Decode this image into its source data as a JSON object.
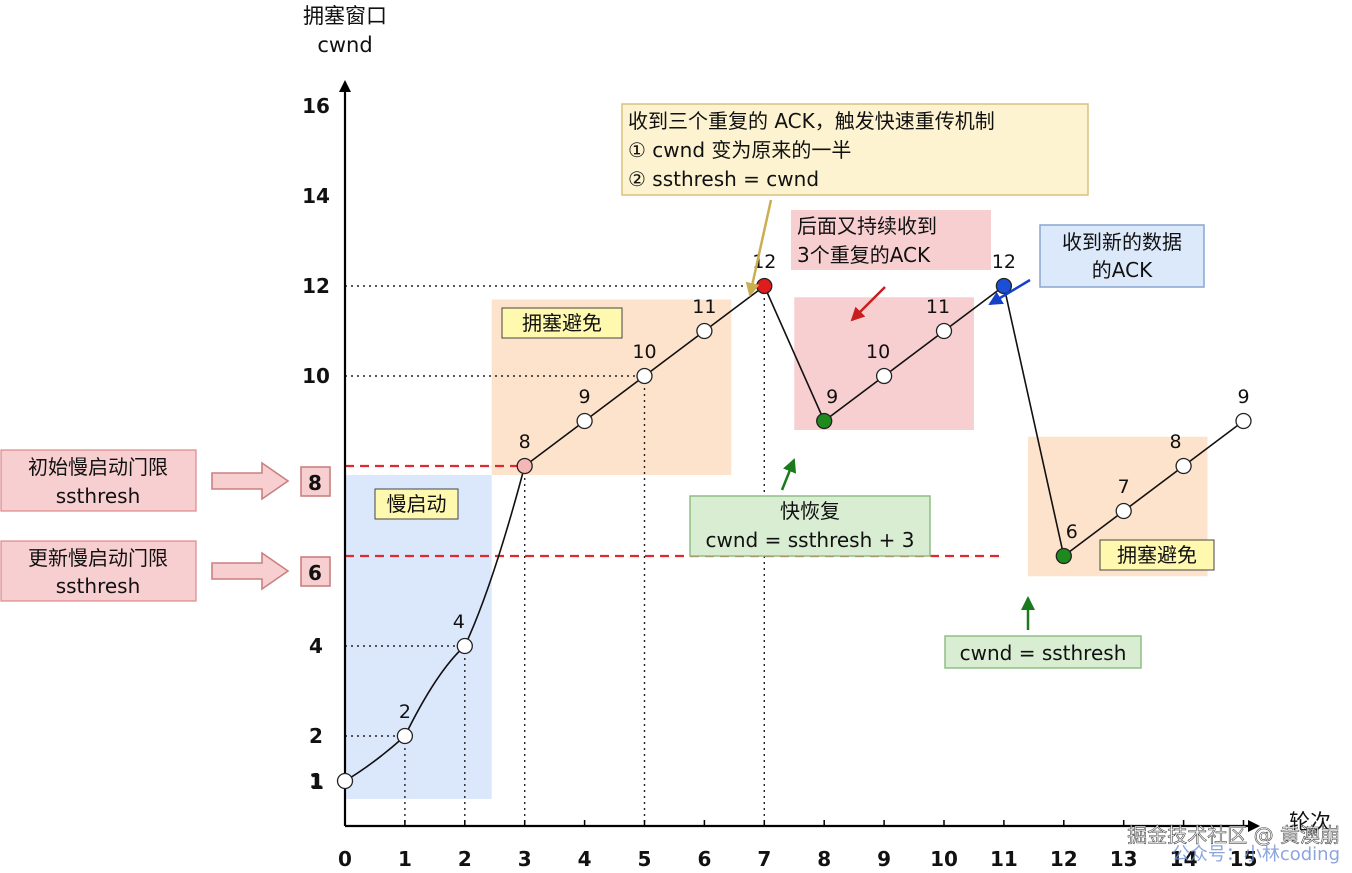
{
  "chart_data": {
    "type": "line",
    "ylabel_line1": "拥塞窗口",
    "ylabel_line2": "cwnd",
    "xlabel": "轮次",
    "x_ticks": [
      "0",
      "1",
      "2",
      "3",
      "4",
      "5",
      "6",
      "7",
      "8",
      "9",
      "10",
      "11",
      "12",
      "13",
      "14",
      "15"
    ],
    "y_ticks": [
      "1",
      "2",
      "4",
      "6",
      "8",
      "10",
      "12",
      "14",
      "16"
    ],
    "xlim": [
      0,
      15
    ],
    "ylim": [
      0,
      16
    ],
    "series": [
      {
        "points": [
          [
            0,
            1
          ],
          [
            1,
            2
          ],
          [
            2,
            4
          ],
          [
            3,
            8
          ],
          [
            4,
            9
          ],
          [
            5,
            10
          ],
          [
            6,
            11
          ],
          [
            7,
            12
          ],
          [
            8,
            9
          ],
          [
            9,
            10
          ],
          [
            10,
            11
          ],
          [
            11,
            12
          ],
          [
            12,
            6
          ],
          [
            13,
            7
          ],
          [
            14,
            8
          ],
          [
            15,
            9
          ]
        ]
      }
    ],
    "point_labels": [
      "2",
      "4",
      "8",
      "9",
      "10",
      "11",
      "12",
      "9",
      "10",
      "11",
      "12",
      "6",
      "7",
      "8",
      "9"
    ],
    "highlighted_points": [
      {
        "x": 3,
        "y": 8,
        "color": "#f4b6b6"
      },
      {
        "x": 7,
        "y": 12,
        "color": "#e01b1b"
      },
      {
        "x": 8,
        "y": 9,
        "color": "#1e8a1e"
      },
      {
        "x": 11,
        "y": 12,
        "color": "#1a4fd6"
      },
      {
        "x": 12,
        "y": 6,
        "color": "#1e8a1e"
      }
    ],
    "thresholds": [
      8,
      6
    ],
    "regions": [
      {
        "label": "慢启动",
        "color": "#dbe8fb"
      },
      {
        "label": "拥塞避免",
        "color": "#fde3cc"
      },
      {
        "label": "",
        "color": "#f8cfd1"
      },
      {
        "label": "拥塞避免",
        "color": "#fde3cc"
      }
    ],
    "annotations": {
      "fast_retransmit": [
        "收到三个重复的 ACK，触发快速重传机制",
        "① cwnd 变为原来的一半",
        "② ssthresh = cwnd"
      ],
      "repeat_dup_ack": [
        "后面又持续收到",
        "3个重复的ACK"
      ],
      "new_ack": [
        "收到新的数据",
        "的ACK"
      ],
      "fast_recovery": [
        "快恢复",
        "cwnd = ssthresh + 3"
      ],
      "cwnd_eq": [
        "cwnd = ssthresh"
      ],
      "initial_ssthresh": [
        "初始慢启动门限",
        "ssthresh"
      ],
      "updated_ssthresh": [
        "更新慢启动门限",
        "ssthresh"
      ],
      "ssthresh_8": "8",
      "ssthresh_6": "6"
    },
    "watermark": "掘金技术社区 @ 黄澳崩",
    "watermark2": "公众号：小林coding",
    "colors": {
      "slow_start": "#dbe8fb",
      "avoid": "#fde3cc",
      "pink": "#f8cfd1",
      "note_yellow": "#fdf3d0",
      "note_green": "#d9edd2",
      "note_blue": "#dce9fb",
      "threshold_red": "#e0282e"
    }
  }
}
